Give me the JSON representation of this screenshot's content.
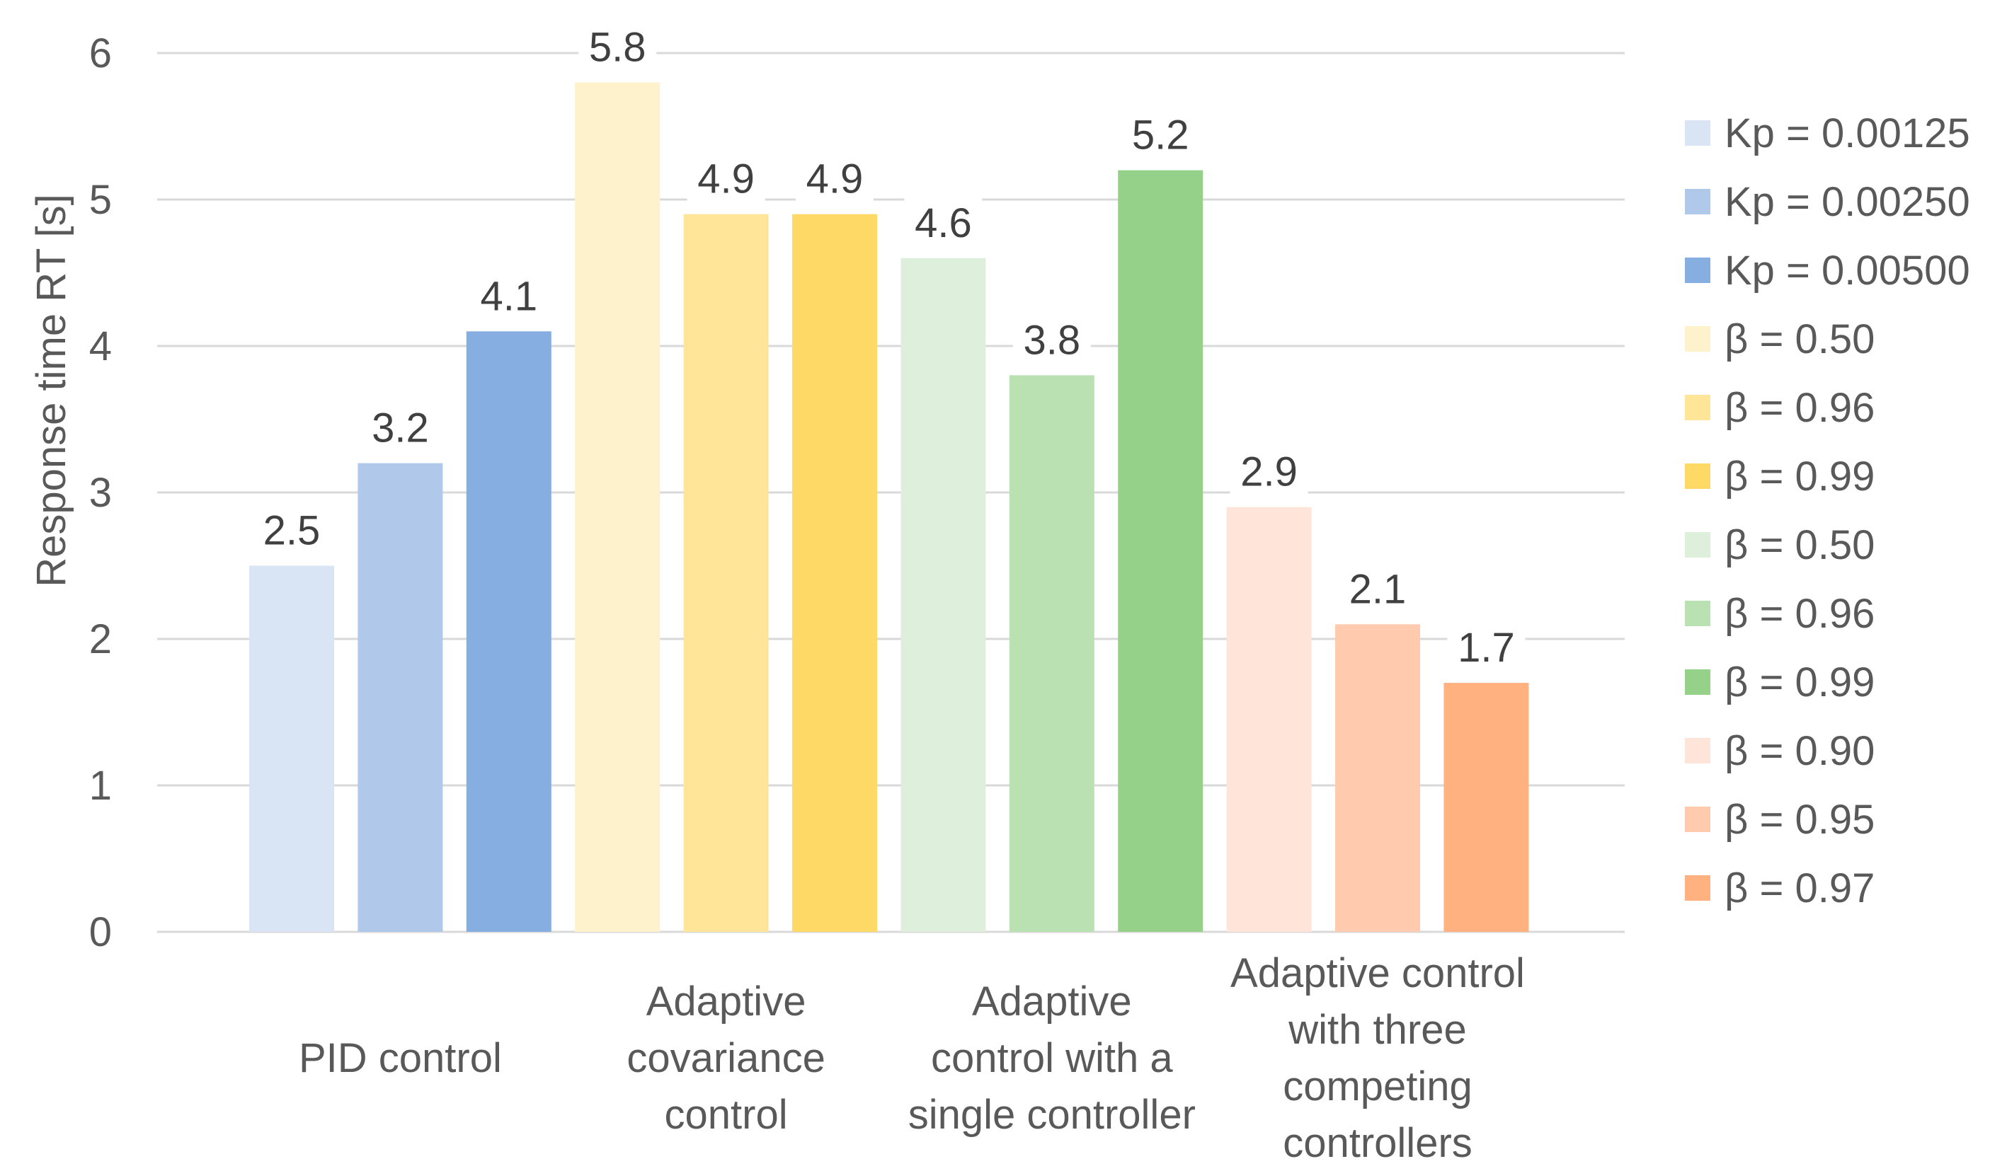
{
  "chart_data": {
    "type": "bar",
    "title": "",
    "xlabel": "",
    "ylabel": "Response time RT [s]",
    "ylim": [
      0,
      6
    ],
    "yticks": [
      0,
      1,
      2,
      3,
      4,
      5,
      6
    ],
    "grid": true,
    "legend_position": "right",
    "groups": [
      {
        "name": "PID control",
        "label_lines": [
          "PID control"
        ]
      },
      {
        "name": "Adaptive covariance control",
        "label_lines": [
          "Adaptive",
          "covariance",
          "control"
        ]
      },
      {
        "name": "Adaptive control with a single controller",
        "label_lines": [
          "Adaptive",
          "control with a",
          "single controller"
        ]
      },
      {
        "name": "Adaptive control with three competing controllers",
        "label_lines": [
          "Adaptive control",
          "with three",
          "competing",
          "controllers"
        ]
      }
    ],
    "series": [
      {
        "name": "Kp = 0.00125",
        "group": 0,
        "value": 2.5,
        "color": "#D9E5F5"
      },
      {
        "name": "Kp = 0.00250",
        "group": 0,
        "value": 3.2,
        "color": "#B0C9EB"
      },
      {
        "name": "Kp = 0.00500",
        "group": 0,
        "value": 4.1,
        "color": "#86AEE0"
      },
      {
        "name": "β = 0.50",
        "group": 1,
        "value": 5.8,
        "color": "#FEF2CC"
      },
      {
        "name": "β = 0.96",
        "group": 1,
        "value": 4.9,
        "color": "#FEE598"
      },
      {
        "name": "β = 0.99",
        "group": 1,
        "value": 4.9,
        "color": "#FED966"
      },
      {
        "name": "β = 0.50",
        "group": 2,
        "value": 4.6,
        "color": "#DEEFDB"
      },
      {
        "name": "β = 0.96",
        "group": 2,
        "value": 3.8,
        "color": "#BAE1B2"
      },
      {
        "name": "β = 0.99",
        "group": 2,
        "value": 5.2,
        "color": "#96D18A"
      },
      {
        "name": "β = 0.90",
        "group": 3,
        "value": 2.9,
        "color": "#FFE5D9"
      },
      {
        "name": "β = 0.95",
        "group": 3,
        "value": 2.1,
        "color": "#FFCAAE"
      },
      {
        "name": "β = 0.97",
        "group": 3,
        "value": 1.7,
        "color": "#FFB180"
      }
    ]
  }
}
